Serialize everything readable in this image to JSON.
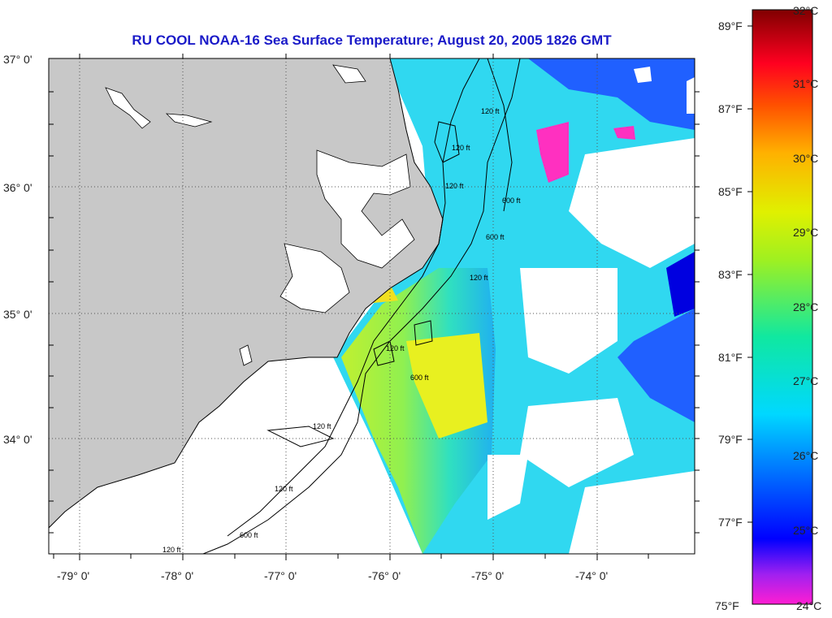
{
  "title": "RU COOL  NOAA-16  Sea Surface Temperature;  August 20, 2005 1826 GMT",
  "lat_labels": [
    "37° 0'",
    "36° 0'",
    "35° 0'",
    "34° 0'"
  ],
  "lon_labels": [
    "-79° 0'",
    "-78° 0'",
    "-77° 0'",
    "-76° 0'",
    "-75° 0'",
    "-74° 0'"
  ],
  "contour_labels": [
    "120 ft",
    "120 ft",
    "600 ft",
    "120 ft",
    "600 ft",
    "120 ft",
    "120 ft",
    "600 ft",
    "120 ft",
    "120 ft",
    "120 ft",
    "600 ft"
  ],
  "colorbar": {
    "fahrenheit": [
      "89°F",
      "87°F",
      "85°F",
      "83°F",
      "81°F",
      "79°F",
      "77°F",
      "75°F"
    ],
    "celsius": [
      "32°C",
      "31°C",
      "30°C",
      "29°C",
      "28°C",
      "27°C",
      "26°C",
      "25°C",
      "24°C"
    ]
  },
  "colors": {
    "land": "#c8c8c8",
    "title": "#1a1ac8",
    "grid": "#555555"
  }
}
